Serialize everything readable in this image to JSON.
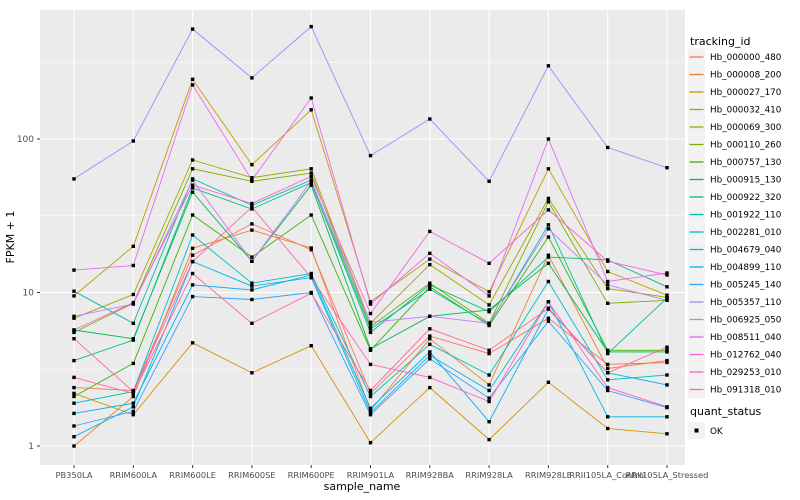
{
  "chart_data": {
    "type": "line",
    "title": "",
    "xlabel": "sample_name",
    "ylabel": "FPKM + 1",
    "yscale": "log10",
    "ylim": [
      0.75,
      700
    ],
    "yticks": [
      1,
      10,
      100
    ],
    "yminor": [
      3.162,
      31.62,
      316.2
    ],
    "grid": "on",
    "panel_bg": "#EBEBEB",
    "grid_color": "#FFFFFF",
    "tick_label_color": "#4D4D4D",
    "point_marker": "black-square",
    "categories": [
      "PB350LA",
      "RRIM600LA",
      "RRIM600LE",
      "RRIM600SE",
      "RRIM600PE",
      "RRIM901LA",
      "RRIM928BA",
      "RRIM928LA",
      "RRIM928LE",
      "RRII105LA_Control",
      "RRII105LA_Stressed"
    ],
    "legend": {
      "title": "tracking_id",
      "position": "right"
    },
    "legend2": {
      "title": "quant_status",
      "items": [
        {
          "label": "OK",
          "marker": "black-square"
        }
      ]
    },
    "series": [
      {
        "name": "Hb_000000_480",
        "color": "#F8766D",
        "values": [
          2.4,
          2.3,
          17.5,
          28,
          19,
          2.2,
          5.2,
          4.0,
          6.8,
          3.4,
          3.5
        ]
      },
      {
        "name": "Hb_000008_200",
        "color": "#EA8331",
        "values": [
          1.0,
          2.1,
          19.4,
          25.5,
          19.5,
          1.7,
          5.0,
          2.5,
          17.5,
          3.2,
          3.6
        ]
      },
      {
        "name": "Hb_000027_170",
        "color": "#D89000",
        "values": [
          2.2,
          1.6,
          4.7,
          3.0,
          4.5,
          1.05,
          2.4,
          1.1,
          2.6,
          1.3,
          1.2
        ]
      },
      {
        "name": "Hb_000032_410",
        "color": "#C09B00",
        "values": [
          9.5,
          20,
          245,
          68,
          155,
          8.7,
          16.5,
          10.1,
          64,
          13.7,
          9.6
        ]
      },
      {
        "name": "Hb_000069_300",
        "color": "#A3A500",
        "values": [
          6.8,
          9.7,
          73,
          56,
          64,
          6.3,
          15.2,
          8.3,
          41,
          10.6,
          9.3
        ]
      },
      {
        "name": "Hb_000110_260",
        "color": "#7CAE00",
        "values": [
          5.5,
          8.5,
          64,
          53,
          60,
          6.0,
          11.5,
          6.3,
          39,
          8.5,
          8.9
        ]
      },
      {
        "name": "Hb_000757_130",
        "color": "#39B600",
        "values": [
          2.1,
          3.45,
          32,
          17,
          32,
          4.2,
          10.9,
          6.1,
          23,
          4.2,
          4.2
        ]
      },
      {
        "name": "Hb_000915_130",
        "color": "#00BB4E",
        "values": [
          5.7,
          5.0,
          45,
          16,
          50,
          4.3,
          7.0,
          7.7,
          15.5,
          4.1,
          4.1
        ]
      },
      {
        "name": "Hb_000922_320",
        "color": "#00BF7D",
        "values": [
          3.6,
          4.9,
          48,
          35,
          52,
          5.5,
          11.2,
          7.5,
          17,
          16.3,
          10.9
        ]
      },
      {
        "name": "Hb_001922_110",
        "color": "#00C1A3",
        "values": [
          10.2,
          6.3,
          55,
          37,
          54,
          5.8,
          10.5,
          6.2,
          27.6,
          4.0,
          9.2
        ]
      },
      {
        "name": "Hb_002281_010",
        "color": "#00BFC4",
        "values": [
          1.9,
          2.26,
          23.7,
          11.5,
          13.3,
          2.1,
          4.6,
          2.9,
          11.8,
          2.7,
          2.9
        ]
      },
      {
        "name": "Hb_004679_040",
        "color": "#00BAE0",
        "values": [
          1.15,
          1.8,
          15.9,
          11.0,
          12.5,
          1.65,
          3.9,
          2.3,
          8.7,
          1.55,
          1.55
        ]
      },
      {
        "name": "Hb_004899_110",
        "color": "#00B0F6",
        "values": [
          1.63,
          1.9,
          11.2,
          10.4,
          13.0,
          1.76,
          4.1,
          1.44,
          7.8,
          3.0,
          2.5
        ]
      },
      {
        "name": "Hb_005245_140",
        "color": "#35A2FF",
        "values": [
          1.35,
          1.68,
          9.4,
          9.0,
          10.0,
          1.6,
          3.7,
          2.05,
          6.5,
          2.3,
          1.78
        ]
      },
      {
        "name": "Hb_005357_110",
        "color": "#9590FF",
        "values": [
          55,
          97,
          520,
          250,
          540,
          78,
          135,
          53,
          300,
          88,
          65
        ]
      },
      {
        "name": "Hb_006925_050",
        "color": "#C77CFF",
        "values": [
          7.0,
          8.4,
          54,
          16,
          53,
          6.4,
          7.0,
          6.3,
          26,
          11.2,
          8.9
        ]
      },
      {
        "name": "Hb_008511_040",
        "color": "#E76BF3",
        "values": [
          14,
          15,
          225,
          54,
          185,
          8.4,
          18,
          9.5,
          100,
          11.8,
          13.4
        ]
      },
      {
        "name": "Hb_012762_040",
        "color": "#FA62DB",
        "values": [
          5.7,
          8.6,
          50,
          38,
          57,
          7.3,
          25,
          15.5,
          34.5,
          16,
          13
        ]
      },
      {
        "name": "Hb_029253_010",
        "color": "#FF62BC",
        "values": [
          5.0,
          2.26,
          15.9,
          36,
          12.5,
          3.4,
          2.8,
          1.95,
          8.7,
          2.4,
          1.8
        ]
      },
      {
        "name": "Hb_091318_010",
        "color": "#FF6A98",
        "values": [
          2.8,
          2.2,
          13.3,
          6.3,
          9.9,
          2.3,
          5.8,
          4.2,
          7.9,
          3.0,
          4.4
        ]
      }
    ]
  }
}
